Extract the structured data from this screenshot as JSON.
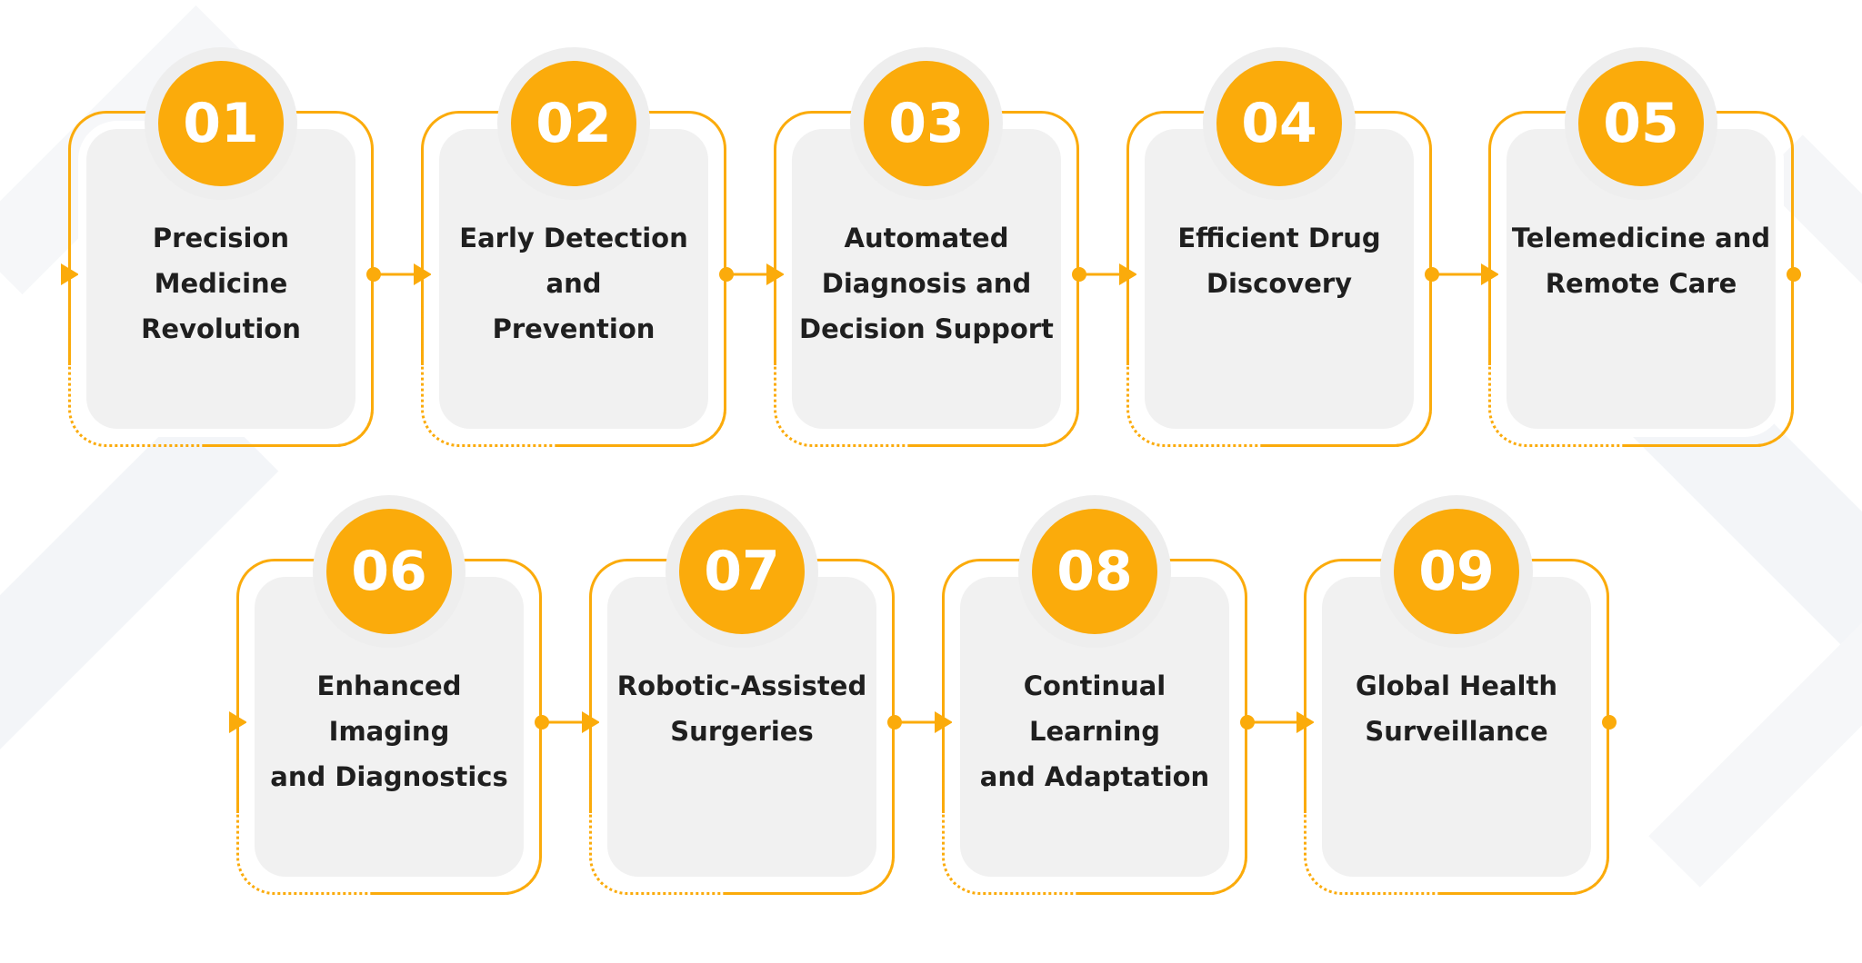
{
  "colors": {
    "accent": "#fbab0b",
    "card": "#f1f1f1",
    "halo": "#eeeeee",
    "text": "#1f1f1f",
    "badge_text": "#ffffff"
  },
  "steps": [
    {
      "number": "01",
      "label_lines": [
        "Precision Medicine",
        "Revolution"
      ]
    },
    {
      "number": "02",
      "label_lines": [
        "Early Detection and",
        "Prevention"
      ]
    },
    {
      "number": "03",
      "label_lines": [
        "Automated",
        "Diagnosis and",
        "Decision Support"
      ]
    },
    {
      "number": "04",
      "label_lines": [
        "Efficient Drug",
        "Discovery"
      ]
    },
    {
      "number": "05",
      "label_lines": [
        "Telemedicine and",
        "Remote Care"
      ]
    },
    {
      "number": "06",
      "label_lines": [
        "Enhanced Imaging",
        "and Diagnostics"
      ]
    },
    {
      "number": "07",
      "label_lines": [
        "Robotic-Assisted",
        "Surgeries"
      ]
    },
    {
      "number": "08",
      "label_lines": [
        "Continual Learning",
        "and Adaptation"
      ]
    },
    {
      "number": "09",
      "label_lines": [
        "Global Health",
        "Surveillance"
      ]
    }
  ]
}
